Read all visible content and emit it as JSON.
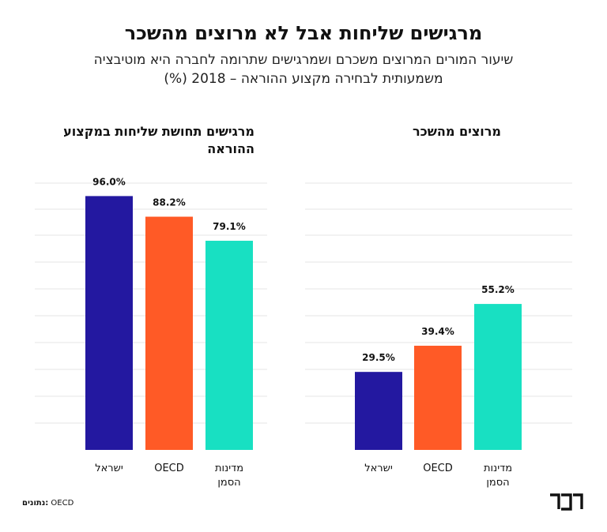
{
  "title": "מרגישים שליחות אבל לא מרוצים מהשכר",
  "subtitle": "שיעור המורים המרוצים משכרם ושמרגישים שתרומה לחברה היא מוטיבציה משמעותית לבחירה מקצוע ההוראה – 2018 (%)",
  "source": {
    "label": "נתונים:",
    "value": "OECD"
  },
  "logo_text": "דבר",
  "colors": {
    "israel": "#2318a0",
    "oecd": "#ff5a26",
    "east": "#18e0c2",
    "grid": "#e6e6e6"
  },
  "chart_data": [
    {
      "type": "bar",
      "title": "מרגישים תחושת שליחות במקצוע ההוראה",
      "categories": [
        "ישראל",
        "OECD",
        "מדינות הסמן"
      ],
      "values": [
        96.0,
        88.2,
        79.1
      ],
      "value_labels": [
        "96.0%",
        "88.2%",
        "79.1%"
      ],
      "ylim": [
        0,
        100
      ],
      "grid": true
    },
    {
      "type": "bar",
      "title": "מרוצים מהשכר",
      "categories": [
        "ישראל",
        "OECD",
        "מדינות הסמן"
      ],
      "values": [
        29.5,
        39.4,
        55.2
      ],
      "value_labels": [
        "29.5%",
        "39.4%",
        "55.2%"
      ],
      "ylim": [
        0,
        100
      ],
      "grid": true
    }
  ]
}
